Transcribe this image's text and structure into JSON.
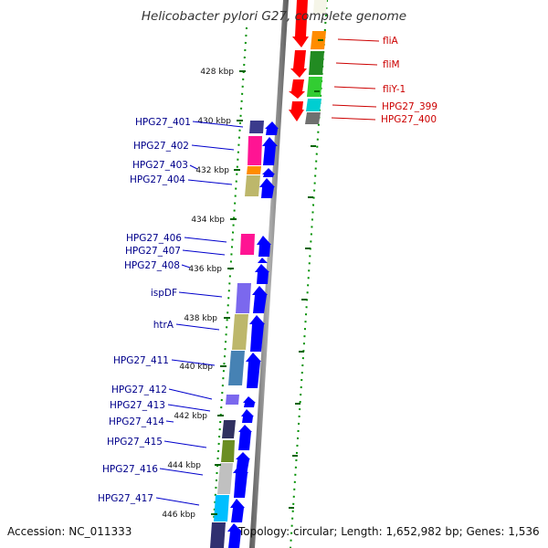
{
  "title": "Helicobacter pylori G27, complete genome",
  "footer": {
    "accession": "Accession: NC_011333",
    "topology": "Topology: circular; Length: 1,652,982 bp; Genes: 1,536"
  },
  "colors": {
    "label_left": "#00008b",
    "label_right": "#cc0000",
    "leader_left": "#0000cc",
    "leader_right": "#cc0000",
    "tick_green": "#008000",
    "backbone": "#808080",
    "forward_arrow": "#0000ff",
    "reverse_arrow": "#ff0000"
  },
  "ruler_labels": [
    "428 kbp",
    "430 kbp",
    "432 kbp",
    "434 kbp",
    "436 kbp",
    "438 kbp",
    "440 kbp",
    "442 kbp",
    "444 kbp",
    "446 kbp"
  ],
  "genes_left": [
    "HPG27_401",
    "HPG27_402",
    "HPG27_403",
    "HPG27_404",
    "HPG27_406",
    "HPG27_407",
    "HPG27_408",
    "ispDF",
    "htrA",
    "HPG27_411",
    "HPG27_412",
    "HPG27_413",
    "HPG27_414",
    "HPG27_415",
    "HPG27_416",
    "HPG27_417"
  ],
  "genes_right": [
    "fliA",
    "fliM",
    "fliY-1",
    "HPG27_399",
    "HPG27_400"
  ]
}
